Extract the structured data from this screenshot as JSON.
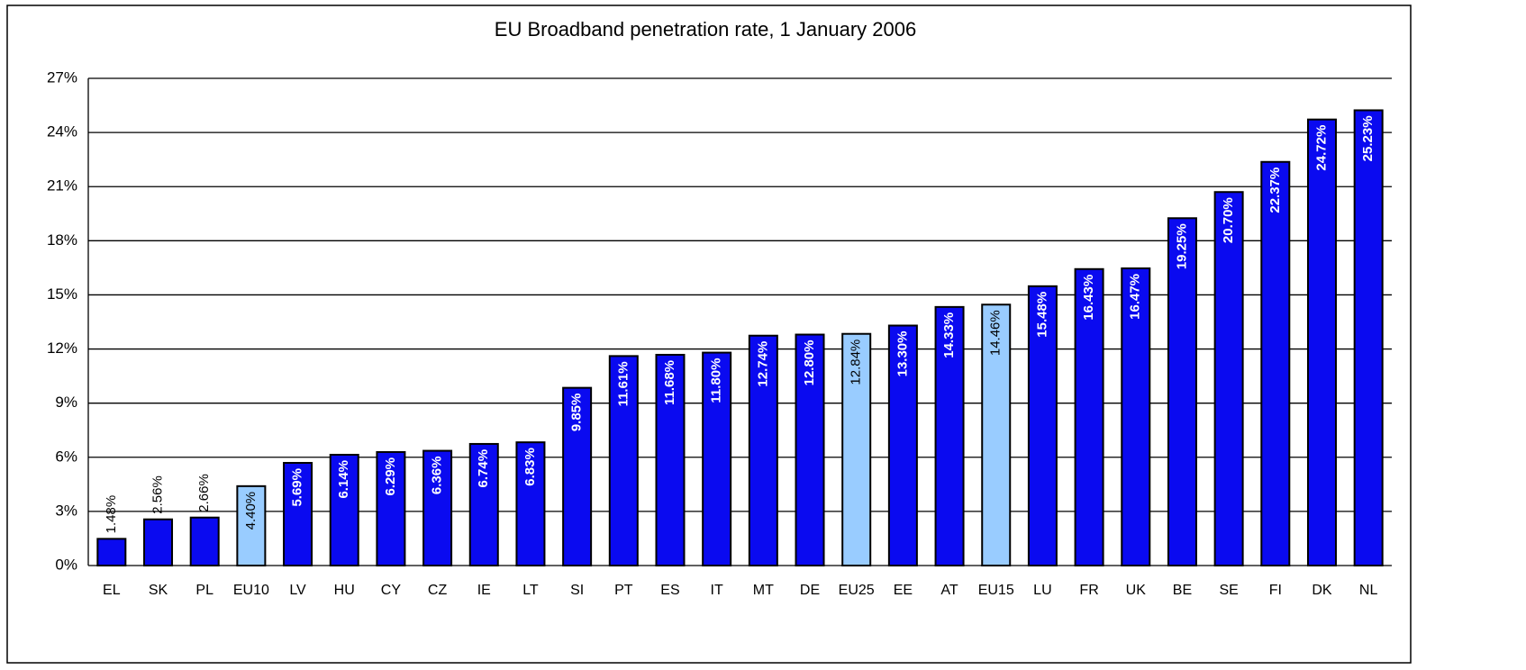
{
  "chart_data": {
    "type": "bar",
    "title": "EU Broadband penetration rate, 1 January 2006",
    "categories": [
      "EL",
      "SK",
      "PL",
      "EU10",
      "LV",
      "HU",
      "CY",
      "CZ",
      "IE",
      "LT",
      "SI",
      "PT",
      "ES",
      "IT",
      "MT",
      "DE",
      "EU25",
      "EE",
      "AT",
      "EU15",
      "LU",
      "FR",
      "UK",
      "BE",
      "SE",
      "FI",
      "DK",
      "NL"
    ],
    "values": [
      1.48,
      2.56,
      2.66,
      4.4,
      5.69,
      6.14,
      6.29,
      6.36,
      6.74,
      6.83,
      9.85,
      11.61,
      11.68,
      11.8,
      12.74,
      12.8,
      12.84,
      13.3,
      14.33,
      14.46,
      15.48,
      16.43,
      16.47,
      19.25,
      20.7,
      22.37,
      24.72,
      25.23
    ],
    "value_labels": [
      "1.48%",
      "2.56%",
      "2.66%",
      "4.40%",
      "5.69%",
      "6.14%",
      "6.29%",
      "6.36%",
      "6.74%",
      "6.83%",
      "9.85%",
      "11.61%",
      "11.68%",
      "11.80%",
      "12.74%",
      "12.80%",
      "12.84%",
      "13.30%",
      "14.33%",
      "14.46%",
      "15.48%",
      "16.43%",
      "16.47%",
      "19.25%",
      "20.70%",
      "22.37%",
      "24.72%",
      "25.23%"
    ],
    "colors": [
      "#0a0af0",
      "#0a0af0",
      "#0a0af0",
      "#99ccff",
      "#0a0af0",
      "#0a0af0",
      "#0a0af0",
      "#0a0af0",
      "#0a0af0",
      "#0a0af0",
      "#0a0af0",
      "#0a0af0",
      "#0a0af0",
      "#0a0af0",
      "#0a0af0",
      "#0a0af0",
      "#99ccff",
      "#0a0af0",
      "#0a0af0",
      "#99ccff",
      "#0a0af0",
      "#0a0af0",
      "#0a0af0",
      "#0a0af0",
      "#0a0af0",
      "#0a0af0",
      "#0a0af0",
      "#0a0af0"
    ],
    "ylim": [
      0,
      27
    ],
    "yticks": [
      {
        "value": 0,
        "label": "0%"
      },
      {
        "value": 3,
        "label": "3%"
      },
      {
        "value": 6,
        "label": "6%"
      },
      {
        "value": 9,
        "label": "9%"
      },
      {
        "value": 12,
        "label": "12%"
      },
      {
        "value": 15,
        "label": "15%"
      },
      {
        "value": 18,
        "label": "18%"
      },
      {
        "value": 21,
        "label": "21%"
      },
      {
        "value": 24,
        "label": "24%"
      },
      {
        "value": 27,
        "label": "27%"
      }
    ],
    "grid": true
  }
}
